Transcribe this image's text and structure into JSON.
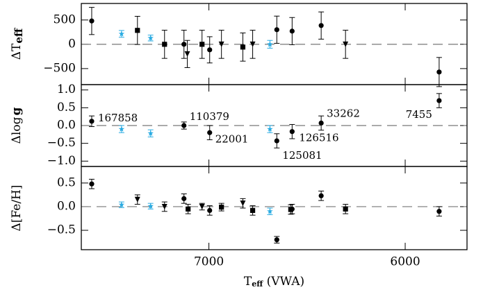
{
  "chart_data": [
    {
      "type": "scatter",
      "ylabel": {
        "main": "ΔT",
        "sub": "eff"
      },
      "xlim": [
        7650,
        5685
      ],
      "ylim": [
        -830,
        840
      ],
      "yticks": [
        {
          "value": -500,
          "label": "−500"
        },
        0,
        500
      ],
      "reference_line": 0,
      "series": [
        {
          "marker": "circle",
          "color": "#000000",
          "x": [
            7597,
            7127,
            6996,
            6654,
            6576,
            6428,
            5827
          ],
          "values": [
            480,
            0,
            -114,
            300,
            271,
            386,
            -571
          ],
          "errors": [
            280,
            290,
            270,
            280,
            280,
            280,
            300
          ]
        },
        {
          "marker": "square",
          "color": "#000000",
          "x": [
            7364,
            7226,
            7035,
            6827
          ],
          "values": [
            286,
            0,
            0,
            -57
          ],
          "errors": [
            290,
            290,
            290,
            290
          ]
        },
        {
          "marker": "triangle",
          "color": "#000000",
          "x": [
            7110,
            6936,
            6777,
            6304
          ],
          "values": [
            -200,
            0,
            0,
            0
          ],
          "errors": [
            280,
            290,
            290,
            290
          ]
        },
        {
          "marker": "star",
          "color": "#29abe2",
          "x": [
            7445,
            7297,
            6689
          ],
          "values": [
            214,
            129,
            0
          ],
          "errors": [
            70,
            60,
            80
          ]
        }
      ]
    },
    {
      "type": "scatter",
      "ylabel": {
        "main": "Δlog",
        "bold": "g"
      },
      "xlim": [
        7650,
        5685
      ],
      "ylim": [
        -1.15,
        1.15
      ],
      "yticks": [
        {
          "value": -1.0,
          "label": "−1.0"
        },
        {
          "value": -0.5,
          "label": "−0.5"
        },
        {
          "value": 0.0,
          "label": "0.0"
        },
        {
          "value": 0.5,
          "label": "0.5"
        },
        {
          "value": 1.0,
          "label": "1.0"
        }
      ],
      "reference_line": 0,
      "series": [
        {
          "marker": "circle",
          "color": "#000000",
          "x": [
            7597,
            7127,
            6996,
            6654,
            6576,
            6428,
            5827
          ],
          "values": [
            0.12,
            0.0,
            -0.2,
            -0.43,
            -0.17,
            0.07,
            0.7
          ],
          "errors": [
            0.15,
            0.1,
            0.2,
            0.2,
            0.2,
            0.2,
            0.2
          ],
          "point_labels": [
            "167858",
            "110379",
            "22001",
            "125081",
            "126516",
            "33262",
            "7455"
          ]
        },
        {
          "marker": "star",
          "color": "#29abe2",
          "x": [
            7445,
            7297,
            6689
          ],
          "values": [
            -0.1,
            -0.22,
            -0.1
          ],
          "errors": [
            0.1,
            0.1,
            0.1
          ]
        }
      ]
    },
    {
      "type": "scatter",
      "ylabel": {
        "main": "Δ[Fe/H]"
      },
      "xlabel": {
        "main": "T",
        "sub": "eff",
        "rest": " (VWA)"
      },
      "xlim": [
        7650,
        5685
      ],
      "ylim": [
        -0.91,
        0.85
      ],
      "xticks": [
        7000,
        6000
      ],
      "yticks": [
        {
          "value": -0.5,
          "label": "−0.5"
        },
        {
          "value": 0.0,
          "label": "0.0"
        },
        {
          "value": 0.5,
          "label": "0.5"
        }
      ],
      "reference_line": 0,
      "series": [
        {
          "marker": "circle",
          "color": "#000000",
          "x": [
            7597,
            7127,
            6996,
            6654,
            6576,
            6428,
            5827
          ],
          "values": [
            0.48,
            0.17,
            -0.08,
            -0.7,
            -0.05,
            0.23,
            -0.1
          ],
          "errors": [
            0.1,
            0.1,
            0.1,
            0.07,
            0.1,
            0.1,
            0.1
          ]
        },
        {
          "marker": "square",
          "color": "#000000",
          "x": [
            7106,
            6936,
            6777,
            6583,
            6304
          ],
          "values": [
            -0.05,
            -0.01,
            -0.08,
            -0.06,
            -0.05
          ],
          "errors": [
            0.1,
            0.08,
            0.1,
            0.1,
            0.1
          ]
        },
        {
          "marker": "triangle",
          "color": "#000000",
          "x": [
            7364,
            7226,
            7035,
            6827
          ],
          "values": [
            0.15,
            0.0,
            0.0,
            0.07
          ],
          "errors": [
            0.1,
            0.1,
            0.07,
            0.1
          ]
        },
        {
          "marker": "star",
          "color": "#29abe2",
          "x": [
            7445,
            7297,
            6689
          ],
          "values": [
            0.04,
            0.01,
            -0.1
          ],
          "errors": [
            0.06,
            0.06,
            0.07
          ]
        }
      ]
    }
  ]
}
